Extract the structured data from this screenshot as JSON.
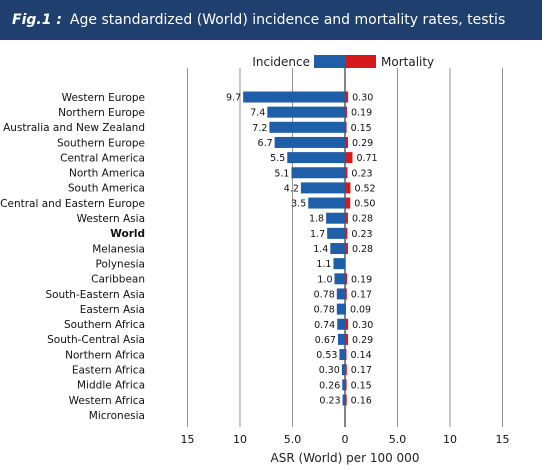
{
  "header": {
    "fig_label": "Fig.1 :",
    "title": "Age standardized (World) incidence and mortality rates, testis"
  },
  "colors": {
    "header_bg": "#1f3f6e",
    "incidence": "#1f5ea8",
    "mortality": "#d7191c",
    "grid": "#888888"
  },
  "chart_data": {
    "type": "bar",
    "orientation": "horizontal-diverging",
    "xlabel": "ASR (World) per 100 000",
    "xlim": [
      -15,
      15
    ],
    "xticks": [
      -15,
      -10,
      -5,
      0,
      5,
      10,
      15
    ],
    "xtick_labels": [
      "15",
      "10",
      "5.0",
      "0",
      "5.0",
      "10",
      "15"
    ],
    "grid": true,
    "legend": {
      "placement": "top-center",
      "left_label": "Incidence",
      "right_label": "Mortality"
    },
    "categories": [
      "Western Europe",
      "Northern Europe",
      "Australia and New Zealand",
      "Southern Europe",
      "Central America",
      "North America",
      "South America",
      "Central and Eastern Europe",
      "Western Asia",
      "World",
      "Melanesia",
      "Polynesia",
      "Caribbean",
      "South-Eastern Asia",
      "Eastern Asia",
      "Southern Africa",
      "South-Central Asia",
      "Northern Africa",
      "Eastern Africa",
      "Middle Africa",
      "Western Africa",
      "Micronesia"
    ],
    "bold_category": "World",
    "series": [
      {
        "name": "Incidence",
        "values": [
          9.7,
          7.4,
          7.2,
          6.7,
          5.5,
          5.1,
          4.2,
          3.5,
          1.8,
          1.7,
          1.4,
          1.1,
          1.0,
          0.78,
          0.78,
          0.74,
          0.67,
          0.53,
          0.3,
          0.26,
          0.23,
          null
        ],
        "labels": [
          "9.7",
          "7.4",
          "7.2",
          "6.7",
          "5.5",
          "5.1",
          "4.2",
          "3.5",
          "1.8",
          "1.7",
          "1.4",
          "1.1",
          "1.0",
          "0.78",
          "0.78",
          "0.74",
          "0.67",
          "0.53",
          "0.30",
          "0.26",
          "0.23",
          ""
        ]
      },
      {
        "name": "Mortality",
        "values": [
          0.3,
          0.19,
          0.15,
          0.29,
          0.71,
          0.23,
          0.52,
          0.5,
          0.28,
          0.23,
          0.28,
          null,
          0.19,
          0.17,
          0.09,
          0.3,
          0.29,
          0.14,
          0.17,
          0.15,
          0.16,
          null
        ],
        "labels": [
          "0.30",
          "0.19",
          "0.15",
          "0.29",
          "0.71",
          "0.23",
          "0.52",
          "0.50",
          "0.28",
          "0.23",
          "0.28",
          "",
          "0.19",
          "0.17",
          "0.09",
          "0.30",
          "0.29",
          "0.14",
          "0.17",
          "0.15",
          "0.16",
          ""
        ]
      }
    ]
  }
}
